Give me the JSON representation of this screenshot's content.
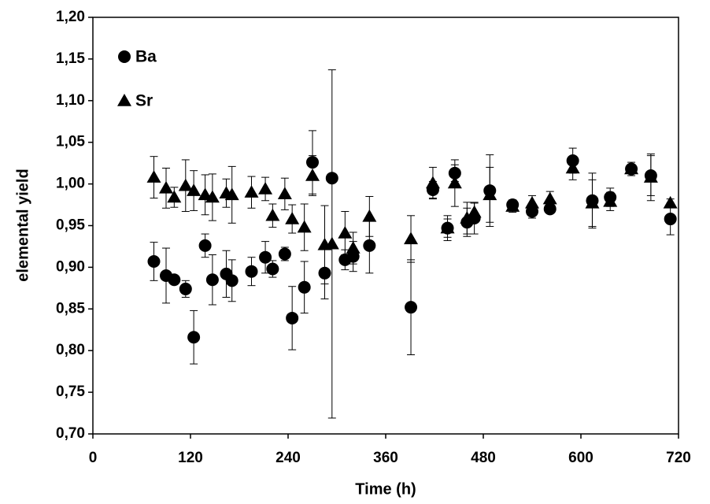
{
  "chart_data": {
    "type": "scatter",
    "x_label": "Time (h)",
    "y_label": "elemental yield",
    "xlim": [
      0,
      720
    ],
    "xticks": [
      0,
      120,
      240,
      360,
      480,
      600,
      720
    ],
    "ylim": [
      0.7,
      1.2
    ],
    "yticks": [
      {
        "value": 0.7,
        "label": "0,70"
      },
      {
        "value": 0.75,
        "label": "0,75"
      },
      {
        "value": 0.8,
        "label": "0,80"
      },
      {
        "value": 0.85,
        "label": "0,85"
      },
      {
        "value": 0.9,
        "label": "0,90"
      },
      {
        "value": 0.95,
        "label": "0,95"
      },
      {
        "value": 1.0,
        "label": "1,00"
      },
      {
        "value": 1.05,
        "label": "1,05"
      },
      {
        "value": 1.1,
        "label": "1,10"
      },
      {
        "value": 1.15,
        "label": "1,15"
      },
      {
        "value": 1.2,
        "label": "1,20"
      }
    ],
    "grid": false,
    "legend": "upper left",
    "series": [
      {
        "name": "Ba",
        "color": "#000000",
        "marker": "circle",
        "x": [
          75,
          90,
          100,
          114,
          124,
          138,
          147,
          164,
          171,
          195,
          212,
          221,
          236,
          245,
          260,
          270,
          285,
          294,
          310,
          320,
          340,
          391,
          418,
          436,
          445,
          460,
          469,
          488,
          516,
          540,
          562,
          590,
          614,
          636,
          662,
          686,
          710
        ],
        "values": [
          0.907,
          0.89,
          0.885,
          0.874,
          0.816,
          0.926,
          0.885,
          0.892,
          0.884,
          0.895,
          0.912,
          0.898,
          0.916,
          0.839,
          0.876,
          1.026,
          0.893,
          1.007,
          0.909,
          0.913,
          0.926,
          0.852,
          0.993,
          0.947,
          1.013,
          0.954,
          0.959,
          0.992,
          0.975,
          0.967,
          0.97,
          1.028,
          0.98,
          0.984,
          1.018,
          1.01,
          0.958
        ],
        "errors": [
          0.023,
          0.033,
          0.005,
          0.01,
          0.032,
          0.014,
          0.03,
          0.028,
          0.025,
          0.017,
          0.019,
          0.01,
          0.008,
          0.038,
          0.031,
          0.038,
          0.031,
          0.0,
          0.012,
          0.018,
          0.033,
          0.057,
          0.01,
          0.015,
          0.01,
          0.017,
          0.019,
          0.043,
          0.006,
          0.008,
          0.005,
          0.015,
          0.033,
          0.011,
          0.005,
          0.024,
          0.019
        ]
      },
      {
        "name": "Sr",
        "color": "#000000",
        "marker": "triangle",
        "x": [
          75,
          90,
          100,
          114,
          124,
          138,
          147,
          164,
          171,
          195,
          212,
          221,
          236,
          245,
          260,
          270,
          285,
          294,
          310,
          320,
          340,
          391,
          418,
          436,
          445,
          460,
          469,
          488,
          516,
          540,
          562,
          590,
          614,
          636,
          662,
          686,
          710
        ],
        "values": [
          1.008,
          0.995,
          0.984,
          0.998,
          0.992,
          0.987,
          0.984,
          0.989,
          0.987,
          0.99,
          0.994,
          0.962,
          0.988,
          0.958,
          0.948,
          1.01,
          0.927,
          0.928,
          0.941,
          0.923,
          0.961,
          0.934,
          1.001,
          0.947,
          1.001,
          0.959,
          0.966,
          0.987,
          0.973,
          0.977,
          0.982,
          1.019,
          0.977,
          0.979,
          1.018,
          1.008,
          0.977
        ],
        "errors": [
          0.025,
          0.024,
          0.012,
          0.031,
          0.024,
          0.024,
          0.028,
          0.017,
          0.034,
          0.019,
          0.014,
          0.014,
          0.019,
          0.017,
          0.028,
          0.024,
          0.047,
          0.209,
          0.026,
          0.019,
          0.024,
          0.028,
          0.019,
          0.011,
          0.028,
          0.019,
          0.011,
          0.033,
          0.007,
          0.009,
          0.009,
          0.014,
          0.028,
          0.011,
          0.008,
          0.028,
          0.005
        ]
      }
    ]
  }
}
